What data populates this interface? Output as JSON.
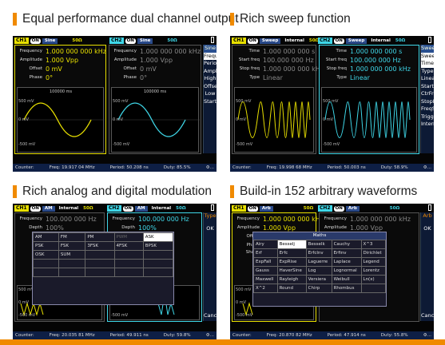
{
  "headings": [
    "Equal performance dual channel output",
    "Rich sweep function",
    "Rich analog and digital modulation",
    "Build-in 152 arbitrary waveforms"
  ],
  "colors": {
    "ch1": "#e8e000",
    "ch2": "#3fd7e8",
    "accent": "#f08a00"
  },
  "p1": {
    "ch1_tag": "CH1",
    "ch1_on": "ON",
    "ch1_wave": "Sine",
    "ch1_ohm": "50Ω",
    "ch2_tag": "CH2",
    "ch2_on": "ON",
    "ch2_wave": "Sine",
    "ch2_ohm": "50Ω",
    "ch1_rows": [
      [
        "Frequency",
        "1.000 000 000 kHz"
      ],
      [
        "Amplitude",
        "1.000 Vpp"
      ],
      [
        "Offset",
        "0 mV"
      ],
      [
        "Phase",
        "0°"
      ]
    ],
    "ch2_rows": [
      [
        "Frequency",
        "1.000 000 000 kHz"
      ],
      [
        "Amplitude",
        "1.000 Vpp"
      ],
      [
        "Offset",
        "0 mV"
      ],
      [
        "Phase",
        "0°"
      ]
    ],
    "wave_label": "100000 ms",
    "y_top": "500 mV",
    "y_mid": "0 mV",
    "y_bot": "-500 mV",
    "menu": [
      "Sine",
      "Frequency",
      "Period",
      "Amplitude",
      "High",
      "Offset",
      "Low",
      "StartPhase"
    ],
    "status_counter": "Counter:",
    "status_freq": "Freq: 19.917 04 MHz",
    "status_period": "Period: 50.208 ns",
    "status_duty": "Duty: 85.5%"
  },
  "p2": {
    "ch1_tag": "CH1",
    "ch1_on": "ON",
    "ch1_wave": "Sweep",
    "ch1_mode": "Internal",
    "ch1_ohm": "50Ω",
    "ch2_tag": "CH2",
    "ch2_on": "ON",
    "ch2_wave": "Sweep",
    "ch2_mode": "Internal",
    "ch2_ohm": "50Ω",
    "ch1_rows": [
      [
        "Time",
        "1.000 000 000 s"
      ],
      [
        "Start freq",
        "100.000 000 Hz"
      ],
      [
        "Stop freq",
        "1.000 000 000 kHz"
      ],
      [
        "Type",
        "Linear"
      ]
    ],
    "ch2_rows": [
      [
        "Time",
        "1.000 000 000 s"
      ],
      [
        "Start freq",
        "100.000 000 Hz"
      ],
      [
        "Stop freq",
        "1.000 000 000 kHz"
      ],
      [
        "Type",
        "Linear"
      ]
    ],
    "y_top": "500 mV",
    "y_mid": "0 mV",
    "y_bot": "-500 mV",
    "menu": [
      "Sweep",
      "Sweep",
      "Time",
      "Type",
      "Linear",
      "StartFreq",
      "CtrFreq",
      "StopFreq",
      "FreqSpan",
      "Trigger",
      "Internal"
    ],
    "status_counter": "Counter:",
    "status_freq": "Freq: 19.998 68 MHz",
    "status_period": "Period: 50.003 ns",
    "status_duty": "Duty: 58.9%"
  },
  "p3": {
    "ch1_tag": "CH1",
    "ch1_on": "ON",
    "ch1_wave": "AM",
    "ch1_mode": "Internal",
    "ch1_ohm": "50Ω",
    "ch2_tag": "CH2",
    "ch2_on": "ON",
    "ch2_wave": "AM",
    "ch2_mode": "Internal",
    "ch2_ohm": "50Ω",
    "ch1_rows": [
      [
        "Frequency",
        "100.000 000 Hz"
      ],
      [
        "Depth",
        "100%"
      ],
      [
        "Mod",
        ""
      ]
    ],
    "ch2_rows": [
      [
        "Frequency",
        "100.000 000 Hz"
      ],
      [
        "Depth",
        "100%"
      ]
    ],
    "grid": [
      [
        "AM",
        "FM",
        "PM",
        "PWM",
        "ASK"
      ],
      [
        "PSK",
        "FSK",
        "3FSK",
        "4FSK",
        "BPSK"
      ],
      [
        "OSK",
        "SUM",
        "",
        "",
        ""
      ],
      [
        "",
        "",
        "",
        "",
        ""
      ],
      [
        "",
        "",
        "",
        "",
        ""
      ]
    ],
    "selected": "ASK",
    "y_top": "500 mV",
    "y_mid": "0 mV",
    "y_bot": "-500 mV",
    "menu": [
      "Type",
      "OK",
      "Cancel"
    ],
    "status_counter": "Counter:",
    "status_freq": "Freq: 20.035 81 MHz",
    "status_period": "Period: 49.911 ns",
    "status_duty": "Duty: 59.8%"
  },
  "p4": {
    "ch1_tag": "CH1",
    "ch1_on": "ON",
    "ch1_wave": "Arb",
    "ch1_ohm": "50Ω",
    "ch2_tag": "CH2",
    "ch2_on": "ON",
    "ch2_wave": "Arb",
    "ch2_ohm": "50Ω",
    "ch1_rows": [
      [
        "Frequency",
        "1.000 000 000 kHz"
      ],
      [
        "Amplitude",
        "1.000 Vpp"
      ],
      [
        "Offset",
        ""
      ],
      [
        "Phase",
        ""
      ],
      [
        "Shape",
        ""
      ]
    ],
    "ch2_rows": [
      [
        "Frequency",
        "1.000 000 000 kHz"
      ],
      [
        "Amplitude",
        "1.000 Vpp"
      ]
    ],
    "popup_title": "Maths",
    "grid": [
      [
        "Airy",
        "Besselj",
        "Cauchy",
        "X^3"
      ],
      [
        "Erf",
        "Erfc",
        "Erfclnv",
        "Dirichlet"
      ],
      [
        "ExpFall",
        "ExpRise",
        "Laguerre",
        "Legend"
      ],
      [
        "Gauss",
        "HaverSine",
        "Log",
        "Lorentz"
      ],
      [
        "Maxwell",
        "Rayleigh",
        "Versiera",
        "Weibull"
      ],
      [
        "X^2",
        "Round",
        "Chirp",
        "Rhombus"
      ]
    ],
    "grid_extra": [
      "Besselk",
      "Erfinv",
      "Laplace",
      "Lognormal",
      "Ln(x)"
    ],
    "selected": "Besselj",
    "y_top": "500 mV",
    "y_mid": "0 mV",
    "y_bot": "-500 mV",
    "menu": [
      "Arb",
      "OK",
      "Cancel"
    ],
    "status_counter": "Counter:",
    "status_freq": "Freq: 20.870 82 MHz",
    "status_period": "Period: 47.914 ns",
    "status_duty": "Duty: 55.8%"
  }
}
